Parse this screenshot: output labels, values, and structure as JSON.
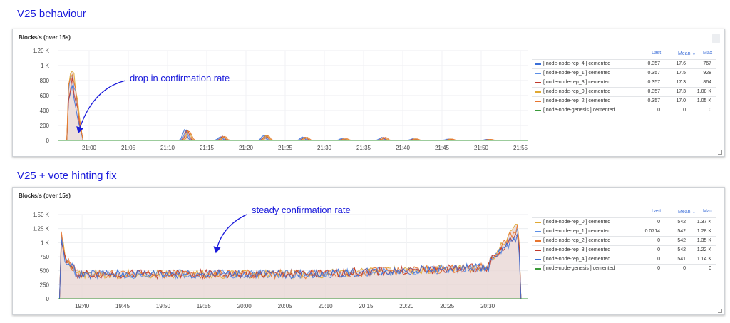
{
  "titles": {
    "section1": "V25 behaviour",
    "section2": "V25 + vote hinting fix"
  },
  "annotations": {
    "a1": "drop in confirmation rate",
    "a2": "steady confirmation rate"
  },
  "icons": {
    "menu": "more-vertical-icon",
    "resize": "resize-corner-icon"
  },
  "colors": {
    "rep_4": "#3a6fd8",
    "rep_1": "#5b8ee6",
    "rep_3": "#c0382b",
    "rep_0": "#e0a832",
    "rep_2": "#e8752e",
    "genesis": "#3a9a3a",
    "fill": "#e9d7d4",
    "annotation": "#1a1adb"
  },
  "legend_headers": {
    "last": "Last",
    "mean": "Mean ⌄",
    "max": "Max"
  },
  "chart_data": [
    {
      "type": "line",
      "title": "Blocks/s (over 15s)",
      "x_ticks": [
        "21:00",
        "21:05",
        "21:10",
        "21:15",
        "21:20",
        "21:25",
        "21:30",
        "21:35",
        "21:40",
        "21:45",
        "21:50",
        "21:55"
      ],
      "y_ticks": [
        "0",
        "200",
        "400",
        "600",
        "800",
        "1 K",
        "1.20 K"
      ],
      "ylim": [
        0,
        1200
      ],
      "xlim": [
        "20:56",
        "21:56"
      ],
      "legend_placement": "right",
      "grid": true,
      "series": [
        {
          "name": "[ node-node-rep_4 ] cemented",
          "color_key": "rep_4",
          "last": "0.357",
          "mean": "17.6",
          "max": "767"
        },
        {
          "name": "[ node-node-rep_1 ] cemented",
          "color_key": "rep_1",
          "last": "0.357",
          "mean": "17.5",
          "max": "928"
        },
        {
          "name": "[ node-node-rep_3 ] cemented",
          "color_key": "rep_3",
          "last": "0.357",
          "mean": "17.3",
          "max": "864"
        },
        {
          "name": "[ node-node-rep_0 ] cemented",
          "color_key": "rep_0",
          "last": "0.357",
          "mean": "17.3",
          "max": "1.08 K"
        },
        {
          "name": "[ node-node-rep_2 ] cemented",
          "color_key": "rep_2",
          "last": "0.357",
          "mean": "17.0",
          "max": "1.05 K"
        },
        {
          "name": "[ node-node-genesis ] cemented",
          "color_key": "genesis",
          "last": "0",
          "mean": "0",
          "max": "0"
        }
      ],
      "events": [
        {
          "t": "21:12:30",
          "peak": 160
        },
        {
          "t": "21:17:00",
          "peak": 60
        },
        {
          "t": "21:22:30",
          "peak": 80
        },
        {
          "t": "21:27:30",
          "peak": 50
        },
        {
          "t": "21:32:30",
          "peak": 25
        },
        {
          "t": "21:37:30",
          "peak": 45
        },
        {
          "t": "21:41:30",
          "peak": 25
        },
        {
          "t": "21:46:00",
          "peak": 20
        },
        {
          "t": "21:51:00",
          "peak": 15
        }
      ]
    },
    {
      "type": "line",
      "title": "Blocks/s (over 15s)",
      "x_ticks": [
        "19:40",
        "19:45",
        "19:50",
        "19:55",
        "20:00",
        "20:05",
        "20:10",
        "20:15",
        "20:20",
        "20:25",
        "20:30"
      ],
      "y_ticks": [
        "0",
        "250",
        "500",
        "750",
        "1 K",
        "1.25 K",
        "1.50 K"
      ],
      "ylim": [
        0,
        1500
      ],
      "xlim": [
        "19:37",
        "20:35"
      ],
      "legend_placement": "right",
      "grid": true,
      "series": [
        {
          "name": "[ node-node-rep_0 ] cemented",
          "color_key": "rep_0",
          "last": "0",
          "mean": "542",
          "max": "1.37 K"
        },
        {
          "name": "[ node-node-rep_1 ] cemented",
          "color_key": "rep_1",
          "last": "0.0714",
          "mean": "542",
          "max": "1.28 K"
        },
        {
          "name": "[ node-node-rep_2 ] cemented",
          "color_key": "rep_2",
          "last": "0",
          "mean": "542",
          "max": "1.35 K"
        },
        {
          "name": "[ node-node-rep_3 ] cemented",
          "color_key": "rep_3",
          "last": "0",
          "mean": "542",
          "max": "1.22 K"
        },
        {
          "name": "[ node-node-rep_4 ] cemented",
          "color_key": "rep_4",
          "last": "0",
          "mean": "541",
          "max": "1.14 K"
        },
        {
          "name": "[ node-node-genesis ] cemented",
          "color_key": "genesis",
          "last": "0",
          "mean": "0",
          "max": "0"
        }
      ]
    }
  ]
}
